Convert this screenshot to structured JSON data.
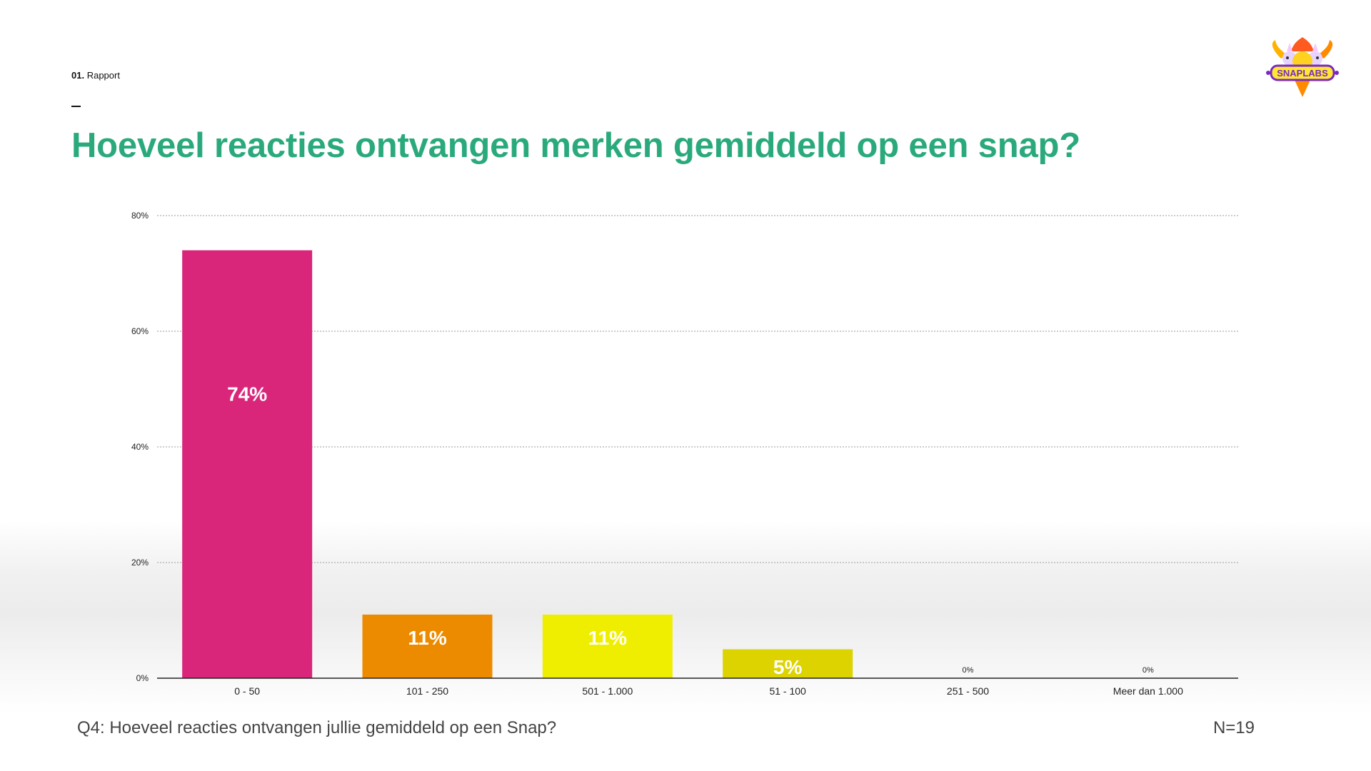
{
  "header": {
    "section_number": "01.",
    "section_name": "Rapport",
    "title": "Hoeveel reacties ontvangen merken gemiddeld op een snap?"
  },
  "logo": {
    "text": "SNAPLABS",
    "icon": "snaplabs-unicorn-badge-icon"
  },
  "chart_data": {
    "type": "bar",
    "categories": [
      "0 - 50",
      "101 - 250",
      "501 - 1.000",
      "51 - 100",
      "251 - 500",
      "Meer dan 1.000"
    ],
    "values": [
      74,
      11,
      11,
      5,
      0,
      0
    ],
    "value_labels": [
      "74%",
      "11%",
      "11%",
      "5%",
      "0%",
      "0%"
    ],
    "colors": [
      "#d9267b",
      "#ec8b00",
      "#f0ee00",
      "#dcd300",
      "#d9267b",
      "#d9267b"
    ],
    "ylim": [
      0,
      80
    ],
    "yticks": [
      0,
      20,
      40,
      60,
      80
    ],
    "ytick_labels": [
      "0%",
      "20%",
      "40%",
      "60%",
      "80%"
    ],
    "grid": true,
    "title": "",
    "xlabel": "",
    "ylabel": ""
  },
  "footer": {
    "question": "Q4: Hoeveel reacties ontvangen jullie gemiddeld op een Snap?",
    "n": "N=19"
  }
}
